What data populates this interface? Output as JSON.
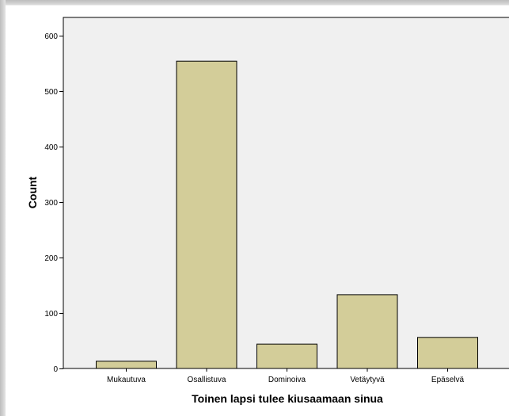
{
  "chart_data": {
    "type": "bar",
    "title": "",
    "xlabel": "Toinen lapsi tulee kiusaamaan sinua",
    "ylabel": "Count",
    "categories": [
      "Mukautuva",
      "Osallistuva",
      "Dominoiva",
      "Vetäytyvä",
      "Epäselvä"
    ],
    "values": [
      13,
      554,
      44,
      133,
      56
    ],
    "ylim": [
      0,
      600
    ],
    "yticks": [
      0,
      100,
      200,
      300,
      400,
      500,
      600
    ],
    "grid": false,
    "legend": "none",
    "colors": {
      "bar_fill": "#d3cd99",
      "bar_stroke": "#000000",
      "plot_background": "#f0f0f0"
    }
  }
}
